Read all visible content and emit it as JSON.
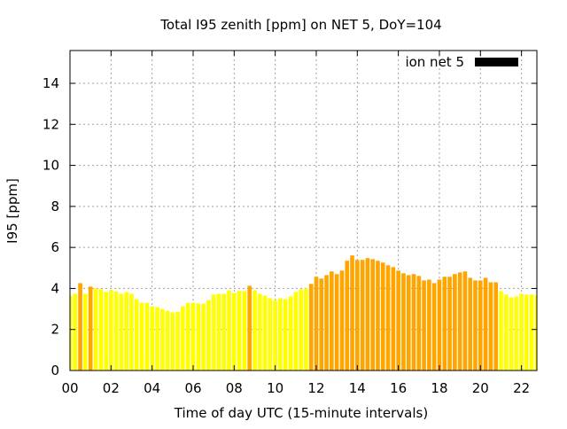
{
  "chart_data": {
    "type": "bar",
    "title": "Total I95 zenith [ppm] on NET 5, DoY=104",
    "xlabel": "Time of day UTC (15-minute intervals)",
    "ylabel": "I95 [ppm]",
    "xlim": [
      0,
      22.75
    ],
    "ylim": [
      0,
      15.6
    ],
    "grid": true,
    "legend": {
      "label": "ion net 5",
      "color": "#000000",
      "placement": "top-right"
    },
    "xticks": [
      0,
      2,
      4,
      6,
      8,
      10,
      12,
      14,
      16,
      18,
      20,
      22
    ],
    "xtick_labels": [
      "00",
      "02",
      "04",
      "06",
      "08",
      "10",
      "12",
      "14",
      "16",
      "18",
      "20",
      "22"
    ],
    "yticks": [
      0,
      2,
      4,
      6,
      8,
      10,
      12,
      14
    ],
    "ytick_labels": [
      "0",
      "2",
      "4",
      "6",
      "8",
      "10",
      "12",
      "14"
    ],
    "bar_interval_hours": 0.25,
    "colors": {
      "normal": "#ffff00",
      "highlight": "#ffa500"
    },
    "values": [
      3.65,
      3.74,
      4.26,
      3.74,
      4.09,
      4.0,
      3.96,
      3.83,
      3.91,
      3.86,
      3.74,
      3.83,
      3.74,
      3.48,
      3.3,
      3.3,
      3.13,
      3.09,
      3.0,
      2.91,
      2.83,
      2.87,
      3.13,
      3.3,
      3.3,
      3.26,
      3.26,
      3.43,
      3.7,
      3.74,
      3.74,
      3.91,
      3.78,
      3.87,
      3.87,
      4.13,
      3.91,
      3.74,
      3.65,
      3.52,
      3.43,
      3.52,
      3.48,
      3.61,
      3.83,
      3.96,
      4.0,
      4.22,
      4.57,
      4.48,
      4.65,
      4.83,
      4.7,
      4.87,
      5.35,
      5.61,
      5.39,
      5.39,
      5.48,
      5.43,
      5.35,
      5.26,
      5.13,
      5.04,
      4.87,
      4.74,
      4.65,
      4.7,
      4.61,
      4.39,
      4.43,
      4.26,
      4.43,
      4.57,
      4.57,
      4.7,
      4.78,
      4.83,
      4.52,
      4.39,
      4.39,
      4.52,
      4.3,
      4.3,
      3.87,
      3.7,
      3.57,
      3.61,
      3.74,
      3.7,
      3.7,
      3.65
    ],
    "highlighted": [
      2,
      4,
      35,
      47,
      48,
      49,
      50,
      51,
      52,
      53,
      54,
      55,
      56,
      57,
      58,
      59,
      60,
      61,
      62,
      63,
      64,
      65,
      66,
      67,
      68,
      69,
      70,
      71,
      72,
      73,
      74,
      75,
      76,
      77,
      78,
      79,
      80,
      81,
      82,
      83
    ]
  }
}
